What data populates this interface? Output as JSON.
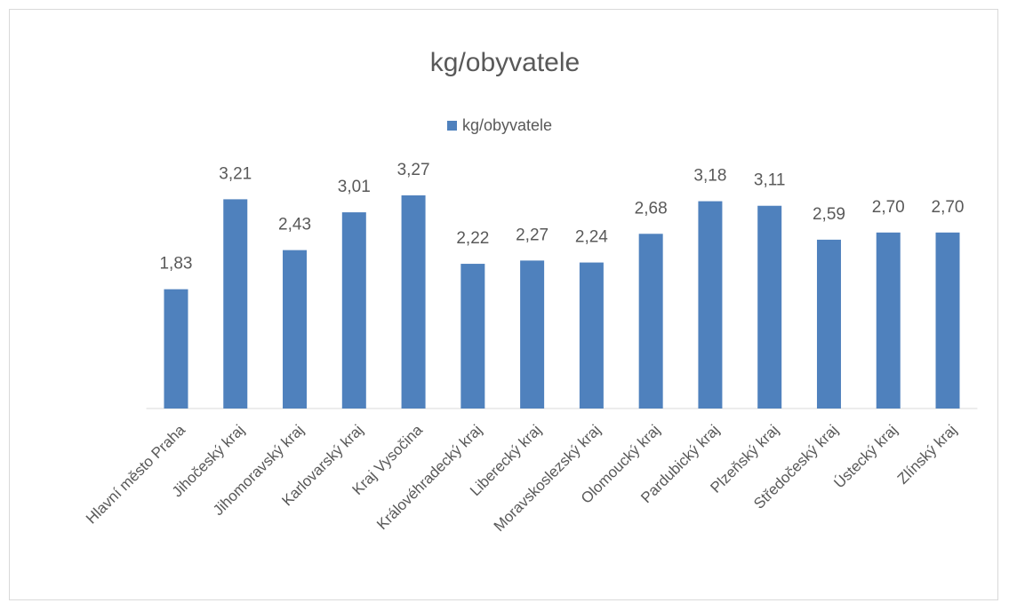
{
  "chart_data": {
    "type": "bar",
    "title": "kg/obyvatele",
    "categories": [
      "Hlavní město Praha",
      "Jihočeský kraj",
      "Jihomoravský kraj",
      "Karlovarský kraj",
      "Kraj Vysočina",
      "Královéhradecký kraj",
      "Liberecký kraj",
      "Moravskoslezský kraj",
      "Olomoucký kraj",
      "Pardubický kraj",
      "Plzeňský kraj",
      "Středočeský kraj",
      "Ústecký kraj",
      "Zlínský kraj"
    ],
    "series": [
      {
        "name": "kg/obyvatele",
        "color": "#4f81bd",
        "values": [
          1.83,
          3.21,
          2.43,
          3.01,
          3.27,
          2.22,
          2.27,
          2.24,
          2.68,
          3.18,
          3.11,
          2.59,
          2.7,
          2.7
        ],
        "value_labels": [
          "1,83",
          "3,21",
          "2,43",
          "3,01",
          "3,27",
          "2,22",
          "2,27",
          "2,24",
          "2,68",
          "3,18",
          "3,11",
          "2,59",
          "2,70",
          "2,70"
        ]
      }
    ],
    "ylim": [
      0,
      3.5
    ],
    "legend": "top"
  }
}
